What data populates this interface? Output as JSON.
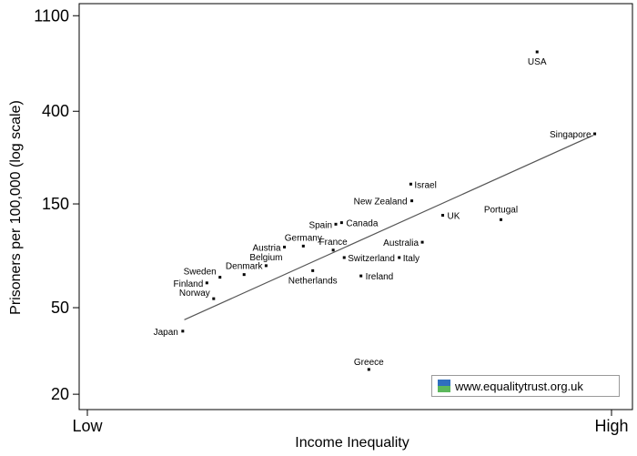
{
  "chart_data": {
    "type": "scatter",
    "xlabel": "Income Inequality",
    "ylabel": "Prisoners per 100,000 (log scale)",
    "x_tick_labels": [
      "Low",
      "High"
    ],
    "y_scale": "log",
    "y_ticks": [
      20,
      50,
      150,
      400,
      1100
    ],
    "ylim": [
      17,
      1250
    ],
    "xlim": [
      0,
      1
    ],
    "grid": false,
    "trend_line": {
      "from": [
        0.185,
        44
      ],
      "to": [
        0.965,
        310
      ]
    },
    "points": [
      {
        "label": "USA",
        "x": 0.858,
        "y": 750
      },
      {
        "label": "Singapore",
        "x": 0.968,
        "y": 315
      },
      {
        "label": "Israel",
        "x": 0.617,
        "y": 185
      },
      {
        "label": "New Zealand",
        "x": 0.619,
        "y": 155
      },
      {
        "label": "Portugal",
        "x": 0.789,
        "y": 127
      },
      {
        "label": "UK",
        "x": 0.678,
        "y": 133
      },
      {
        "label": "Spain",
        "x": 0.474,
        "y": 121
      },
      {
        "label": "Canada",
        "x": 0.485,
        "y": 123
      },
      {
        "label": "Australia",
        "x": 0.639,
        "y": 100
      },
      {
        "label": "Germany",
        "x": 0.412,
        "y": 96
      },
      {
        "label": "Austria",
        "x": 0.376,
        "y": 95
      },
      {
        "label": "France",
        "x": 0.469,
        "y": 92
      },
      {
        "label": "Switzerland",
        "x": 0.49,
        "y": 85
      },
      {
        "label": "Italy",
        "x": 0.595,
        "y": 85
      },
      {
        "label": "Belgium",
        "x": 0.341,
        "y": 78
      },
      {
        "label": "Denmark",
        "x": 0.299,
        "y": 71
      },
      {
        "label": "Netherlands",
        "x": 0.43,
        "y": 74
      },
      {
        "label": "Ireland",
        "x": 0.522,
        "y": 70
      },
      {
        "label": "Sweden",
        "x": 0.253,
        "y": 69
      },
      {
        "label": "Finland",
        "x": 0.228,
        "y": 65
      },
      {
        "label": "Norway",
        "x": 0.241,
        "y": 55
      },
      {
        "label": "Japan",
        "x": 0.182,
        "y": 39
      },
      {
        "label": "Greece",
        "x": 0.537,
        "y": 26
      }
    ]
  },
  "watermark": {
    "text": "www.equalitytrust.org.uk"
  },
  "colors": {
    "logo_top": "#2f6fbf",
    "logo_bottom": "#5cb85c",
    "trend": "#555555"
  }
}
